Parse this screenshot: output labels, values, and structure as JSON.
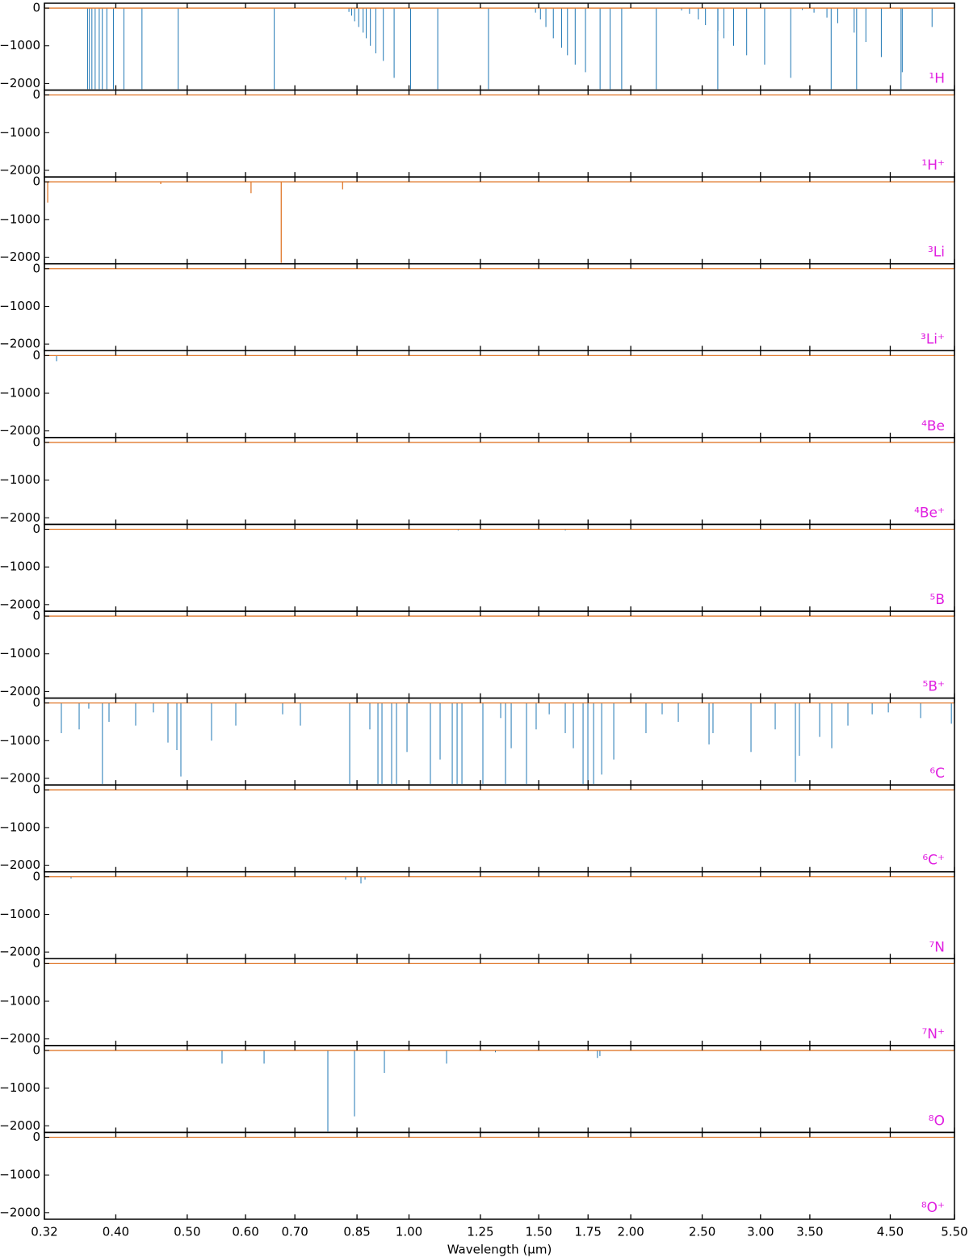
{
  "chart_data": [
    {
      "type": "spectrum",
      "label": "¹H",
      "ylim": [
        -2175,
        130
      ],
      "yticks": [
        0,
        {
          "value": -1000,
          "label": "−1000"
        },
        {
          "value": -2000,
          "label": "−2000"
        }
      ],
      "series": [
        {
          "type": "stem",
          "color": "#1f77b4",
          "x": [
            0.6563,
            0.4861,
            0.4341,
            0.4102,
            0.397,
            0.3889,
            0.3835,
            0.3798,
            0.375,
            0.3712,
            0.3683,
            0.3662,
            1.875,
            1.282,
            1.094,
            1.005,
            0.9546,
            0.9229,
            0.9015,
            0.8863,
            0.875,
            0.8665,
            0.8545,
            0.8437,
            0.836,
            0.8288,
            4.051,
            2.625,
            2.166,
            1.944,
            1.817,
            1.736,
            1.681,
            1.641,
            1.611,
            1.57,
            1.534,
            1.508,
            1.485,
            4.654,
            3.741,
            3.297,
            3.039,
            2.873,
            2.758,
            2.675,
            2.626,
            2.526,
            2.47,
            2.403,
            2.344,
            5.128,
            4.672,
            4.376,
            4.17,
            4.02,
            3.819,
            3.692,
            3.546,
            3.419
          ],
          "values": [
            -2150,
            -2150,
            -2150,
            -2150,
            -2150,
            -2150,
            -2150,
            -2150,
            -2150,
            -2150,
            -2150,
            -2150,
            -2150,
            -2150,
            -2150,
            -2150,
            -1850,
            -1400,
            -1200,
            -1000,
            -800,
            -650,
            -500,
            -350,
            -200,
            -100,
            -2150,
            -2150,
            -2150,
            -2150,
            -2150,
            -1700,
            -1500,
            -1250,
            -1050,
            -800,
            -500,
            -300,
            -120,
            -2150,
            -2150,
            -1850,
            -1500,
            -1250,
            -1000,
            -800,
            -600,
            -450,
            -300,
            -150,
            -60,
            -500,
            -1700,
            -1300,
            -900,
            -650,
            -400,
            -250,
            -120,
            -50
          ]
        },
        {
          "type": "line",
          "color": "#e0792c",
          "x": [
            0.32,
            5.5
          ],
          "values": [
            0,
            0
          ]
        }
      ]
    },
    {
      "type": "spectrum",
      "label": "¹H⁺",
      "ylim": [
        -2175,
        130
      ],
      "yticks": [
        0,
        {
          "value": -1000,
          "label": "−1000"
        },
        {
          "value": -2000,
          "label": "−2000"
        }
      ],
      "series": [
        {
          "type": "line",
          "color": "#e0792c",
          "x": [
            0.32,
            5.5
          ],
          "values": [
            0,
            0
          ]
        }
      ]
    },
    {
      "type": "spectrum",
      "label": "³Li",
      "ylim": [
        -2175,
        130
      ],
      "yticks": [
        0,
        {
          "value": -1000,
          "label": "−1000"
        },
        {
          "value": -2000,
          "label": "−2000"
        }
      ],
      "series": [
        {
          "type": "line",
          "color": "#e0792c",
          "x": [
            0.32,
            0.3233,
            0.3233,
            0.3233,
            0.4603,
            0.4603,
            0.4603,
            0.6104,
            0.6104,
            0.6104,
            0.6708,
            0.6708,
            0.6708,
            0.8127,
            0.8127,
            0.8127,
            5.5
          ],
          "values": [
            0,
            0,
            -550,
            0,
            0,
            -60,
            0,
            0,
            -300,
            0,
            0,
            -2150,
            0,
            0,
            -200,
            0,
            0
          ]
        }
      ]
    },
    {
      "type": "spectrum",
      "label": "³Li⁺",
      "ylim": [
        -2175,
        130
      ],
      "yticks": [
        0,
        {
          "value": -1000,
          "label": "−1000"
        },
        {
          "value": -2000,
          "label": "−2000"
        }
      ],
      "series": [
        {
          "type": "line",
          "color": "#e0792c",
          "x": [
            0.32,
            5.5
          ],
          "values": [
            0,
            0
          ]
        }
      ]
    },
    {
      "type": "spectrum",
      "label": "⁴Be",
      "ylim": [
        -2175,
        130
      ],
      "yticks": [
        0,
        {
          "value": -1000,
          "label": "−1000"
        },
        {
          "value": -2000,
          "label": "−2000"
        }
      ],
      "series": [
        {
          "type": "stem",
          "color": "#1f77b4",
          "x": [
            0.3324
          ],
          "values": [
            -150
          ]
        },
        {
          "type": "line",
          "color": "#e0792c",
          "x": [
            0.32,
            5.5
          ],
          "values": [
            0,
            0
          ]
        }
      ]
    },
    {
      "type": "spectrum",
      "label": "⁴Be⁺",
      "ylim": [
        -2175,
        130
      ],
      "yticks": [
        0,
        {
          "value": -1000,
          "label": "−1000"
        },
        {
          "value": -2000,
          "label": "−2000"
        }
      ],
      "series": [
        {
          "type": "line",
          "color": "#e0792c",
          "x": [
            0.32,
            5.5
          ],
          "values": [
            0,
            0
          ]
        }
      ]
    },
    {
      "type": "spectrum",
      "label": "⁵B",
      "ylim": [
        -2175,
        130
      ],
      "yticks": [
        0,
        {
          "value": -1000,
          "label": "−1000"
        },
        {
          "value": -2000,
          "label": "−2000"
        }
      ],
      "series": [
        {
          "type": "stem",
          "color": "#1f77b4",
          "x": [
            1.166,
            1.63
          ],
          "values": [
            -30,
            -30
          ]
        },
        {
          "type": "line",
          "color": "#e0792c",
          "x": [
            0.32,
            5.5
          ],
          "values": [
            0,
            0
          ]
        }
      ]
    },
    {
      "type": "spectrum",
      "label": "⁵B⁺",
      "ylim": [
        -2175,
        130
      ],
      "yticks": [
        0,
        {
          "value": -1000,
          "label": "−1000"
        },
        {
          "value": -2000,
          "label": "−2000"
        }
      ],
      "series": [
        {
          "type": "line",
          "color": "#e0792c",
          "x": [
            0.32,
            5.5
          ],
          "values": [
            0,
            0
          ]
        }
      ]
    },
    {
      "type": "spectrum",
      "label": "⁶C",
      "ylim": [
        -2175,
        130
      ],
      "yticks": [
        0,
        {
          "value": -1000,
          "label": "−1000"
        },
        {
          "value": -2000,
          "label": "−2000"
        }
      ],
      "series": [
        {
          "type": "stem",
          "color": "#1f77b4",
          "x": [
            0.3374,
            0.3567,
            0.3676,
            0.3836,
            0.3916,
            0.4256,
            0.4499,
            0.4708,
            0.4841,
            0.4902,
            0.5395,
            0.582,
            0.6737,
            0.7122,
            0.8308,
            0.8848,
            0.9075,
            0.919,
            0.9472,
            0.9617,
            0.9938,
            1.0692,
            1.1021,
            1.1447,
            1.1622,
            1.1799,
            1.2598,
            1.3318,
            1.3521,
            1.3763,
            1.4438,
            1.488,
            1.5499,
            1.6297,
            1.6714,
            1.7229,
            1.749,
            1.7805,
            1.826,
            1.8963,
            2.0973,
            2.206,
            2.3203,
            2.554,
            2.586,
            2.912,
            3.141,
            3.3456,
            3.388,
            3.609,
            3.748,
            3.942,
            4.253,
            4.473,
            4.948,
            5.447
          ],
          "values": [
            -800,
            -700,
            -150,
            -2150,
            -500,
            -600,
            -250,
            -1050,
            -1250,
            -1950,
            -1000,
            -600,
            -300,
            -600,
            -2150,
            -700,
            -2150,
            -2150,
            -2150,
            -2150,
            -1300,
            -2150,
            -1500,
            -2150,
            -2150,
            -2150,
            -2150,
            -400,
            -2150,
            -1200,
            -2150,
            -700,
            -300,
            -800,
            -1200,
            -2150,
            -2150,
            -2150,
            -1900,
            -1500,
            -800,
            -300,
            -500,
            -1100,
            -800,
            -1300,
            -700,
            -2100,
            -1400,
            -900,
            -1200,
            -600,
            -300,
            -250,
            -400,
            -550
          ]
        },
        {
          "type": "line",
          "color": "#e0792c",
          "x": [
            0.32,
            5.5
          ],
          "values": [
            0,
            0
          ]
        }
      ]
    },
    {
      "type": "spectrum",
      "label": "⁶C⁺",
      "ylim": [
        -2175,
        130
      ],
      "yticks": [
        0,
        {
          "value": -1000,
          "label": "−1000"
        },
        {
          "value": -2000,
          "label": "−2000"
        }
      ],
      "series": [
        {
          "type": "line",
          "color": "#e0792c",
          "x": [
            0.32,
            5.5
          ],
          "values": [
            0,
            0
          ]
        }
      ]
    },
    {
      "type": "spectrum",
      "label": "⁷N",
      "ylim": [
        -2175,
        130
      ],
      "yticks": [
        0,
        {
          "value": -1000,
          "label": "−1000"
        },
        {
          "value": -2000,
          "label": "−2000"
        }
      ],
      "series": [
        {
          "type": "stem",
          "color": "#1f77b4",
          "x": [
            0.3478,
            0.8203,
            0.8606,
            0.8716
          ],
          "values": [
            -50,
            -80,
            -180,
            -80
          ]
        },
        {
          "type": "line",
          "color": "#e0792c",
          "x": [
            0.32,
            5.5
          ],
          "values": [
            0,
            0
          ]
        }
      ]
    },
    {
      "type": "spectrum",
      "label": "⁷N⁺",
      "ylim": [
        -2175,
        130
      ],
      "yticks": [
        0,
        {
          "value": -1000,
          "label": "−1000"
        },
        {
          "value": -2000,
          "label": "−2000"
        }
      ],
      "series": [
        {
          "type": "line",
          "color": "#e0792c",
          "x": [
            0.32,
            5.5
          ],
          "values": [
            0,
            0
          ]
        }
      ]
    },
    {
      "type": "spectrum",
      "label": "⁸O",
      "ylim": [
        -2175,
        130
      ],
      "yticks": [
        0,
        {
          "value": -1000,
          "label": "−1000"
        },
        {
          "value": -2000,
          "label": "−2000"
        }
      ],
      "series": [
        {
          "type": "stem",
          "color": "#1f77b4",
          "x": [
            0.5575,
            0.6358,
            0.776,
            0.8434,
            0.926,
            1.1246,
            1.31,
            1.802,
            1.816
          ],
          "values": [
            -350,
            -350,
            -2150,
            -1750,
            -600,
            -350,
            -50,
            -200,
            -150
          ]
        },
        {
          "type": "line",
          "color": "#e0792c",
          "x": [
            0.32,
            5.5
          ],
          "values": [
            0,
            0
          ]
        }
      ]
    },
    {
      "type": "spectrum",
      "label": "⁸O⁺",
      "ylim": [
        -2175,
        130
      ],
      "yticks": [
        0,
        {
          "value": -1000,
          "label": "−1000"
        },
        {
          "value": -2000,
          "label": "−2000"
        }
      ],
      "series": [
        {
          "type": "line",
          "color": "#e0792c",
          "x": [
            0.32,
            5.5
          ],
          "values": [
            0,
            0
          ]
        }
      ],
      "xlim": [
        0.32,
        5.5
      ],
      "xticks": [
        0.32,
        {
          "value": 0.4,
          "label": "0.40"
        },
        {
          "value": 0.5,
          "label": "0.50"
        },
        {
          "value": 0.6,
          "label": "0.60"
        },
        {
          "value": 0.7,
          "label": "0.70"
        },
        0.85,
        {
          "value": 1,
          "label": "1.00"
        },
        1.25,
        {
          "value": 1.5,
          "label": "1.50"
        },
        1.75,
        {
          "value": 2,
          "label": "2.00"
        },
        {
          "value": 2.5,
          "label": "2.50"
        },
        {
          "value": 3,
          "label": "3.00"
        },
        {
          "value": 3.5,
          "label": "3.50"
        },
        {
          "value": 4.5,
          "label": "4.50"
        },
        {
          "value": 5.5,
          "label": "5.50"
        }
      ],
      "xlabel": "Wavelength (μm)"
    }
  ]
}
